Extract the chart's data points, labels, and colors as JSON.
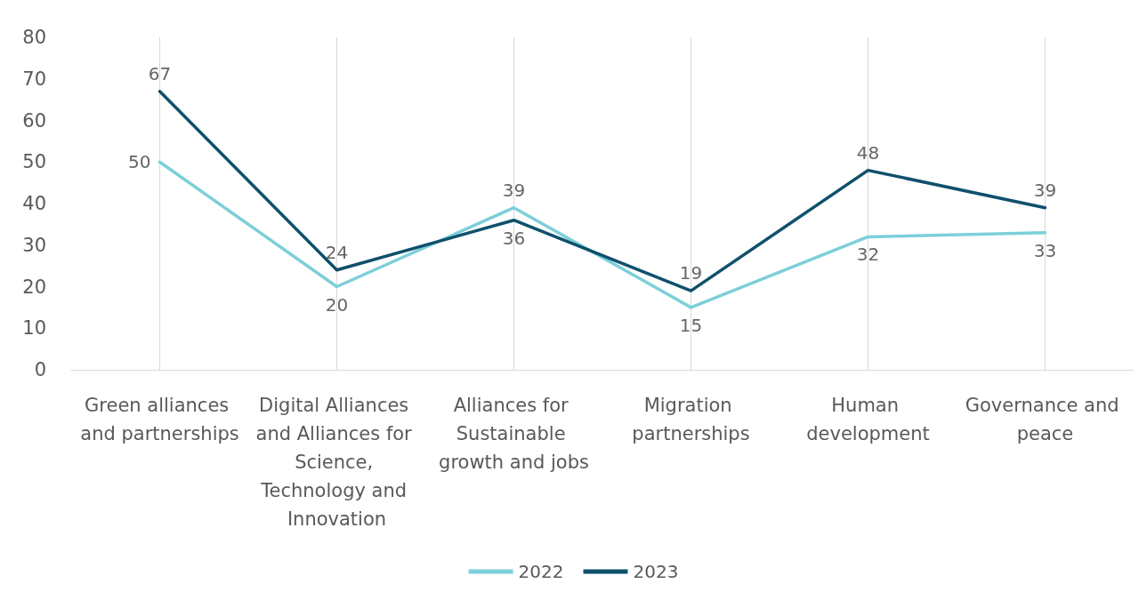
{
  "chart_data": {
    "type": "line",
    "categories": [
      "Green alliances and partnerships",
      "Digital Alliances and Alliances for Science, Technology and Innovation",
      "Alliances for Sustainable growth and jobs",
      "Migration partnerships",
      "Human development",
      "Governance and peace"
    ],
    "series": [
      {
        "name": "2022",
        "color": "#7ccfd9",
        "values": [
          50,
          20,
          39,
          15,
          32,
          33
        ]
      },
      {
        "name": "2023",
        "color": "#0f506c",
        "values": [
          67,
          24,
          36,
          19,
          48,
          39
        ]
      }
    ],
    "ylim": [
      0,
      80
    ],
    "yticks": [
      0,
      10,
      20,
      30,
      40,
      50,
      60,
      70,
      80
    ],
    "grid": "x",
    "legend": "bottom",
    "data_labels": true,
    "marker": "none",
    "line_style": "solid"
  }
}
